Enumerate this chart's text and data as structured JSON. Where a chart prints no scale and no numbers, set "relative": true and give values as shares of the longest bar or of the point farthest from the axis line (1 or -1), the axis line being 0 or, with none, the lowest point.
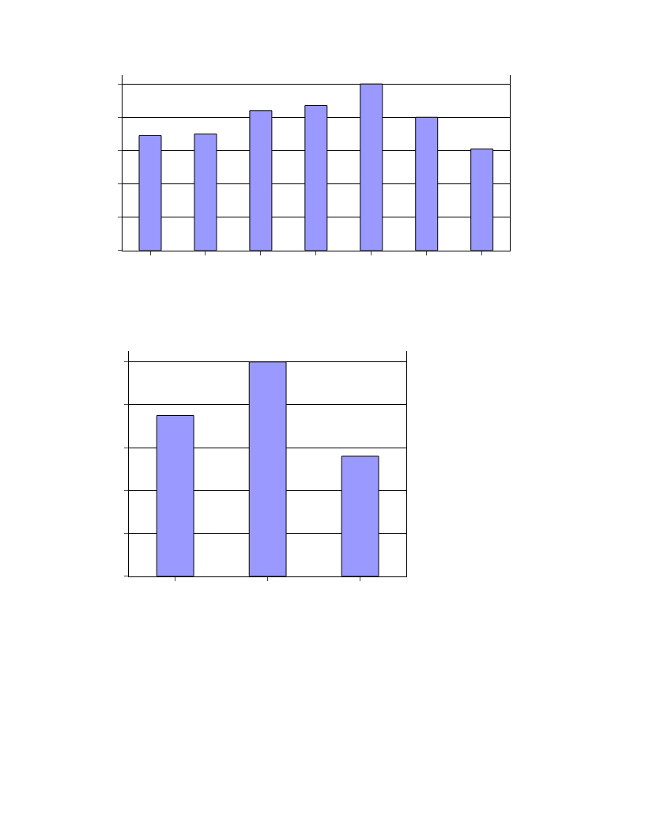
{
  "chart_data": [
    {
      "type": "bar",
      "relative": true,
      "categories": [
        null,
        null,
        null,
        null,
        null,
        null,
        null
      ],
      "color": "#9999ff",
      "grid": "y",
      "values": [
        0.69,
        0.7,
        0.84,
        0.87,
        1,
        0.8,
        0.61
      ]
    },
    {
      "type": "bar",
      "relative": true,
      "categories": [
        null,
        null,
        null
      ],
      "color": "#9999ff",
      "grid": "y",
      "values": [
        0.75,
        1,
        0.56
      ]
    }
  ]
}
